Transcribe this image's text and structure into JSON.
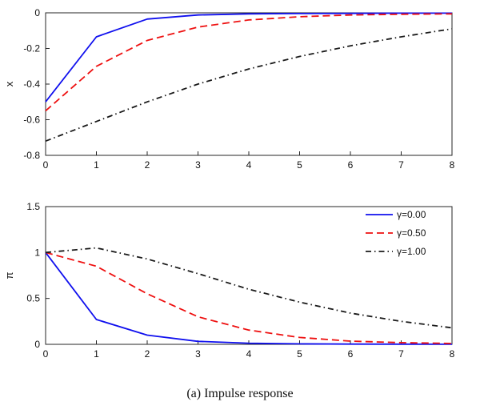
{
  "caption": "(a) Impulse response",
  "colors": {
    "series_blue": "#1010ee",
    "series_red": "#ee1111",
    "series_black": "#1a1a1a",
    "frame": "#262626"
  },
  "chart_data": [
    {
      "type": "line",
      "title": "",
      "xlabel": "",
      "ylabel": "x",
      "xlim": [
        0,
        8
      ],
      "ylim": [
        -0.8,
        0
      ],
      "grid": false,
      "legend": false,
      "x": [
        0,
        1,
        2,
        3,
        4,
        5,
        6,
        7,
        8
      ],
      "xticks": [
        0,
        1,
        2,
        3,
        4,
        5,
        6,
        7,
        8
      ],
      "xtick_labels": [
        "0",
        "1",
        "2",
        "3",
        "4",
        "5",
        "6",
        "7",
        "8"
      ],
      "yticks": [
        0,
        -0.2,
        -0.4,
        -0.6,
        -0.8
      ],
      "ytick_labels": [
        "0",
        "-0.2",
        "-0.4",
        "-0.6",
        "-0.8"
      ],
      "series": [
        {
          "name": "γ=0.00",
          "color": "#1010ee",
          "style": "solid",
          "values": [
            -0.5,
            -0.135,
            -0.035,
            -0.012,
            -0.006,
            -0.004,
            -0.003,
            -0.002,
            -0.002
          ]
        },
        {
          "name": "γ=0.50",
          "color": "#ee1111",
          "style": "dashed",
          "values": [
            -0.55,
            -0.3,
            -0.155,
            -0.08,
            -0.04,
            -0.022,
            -0.012,
            -0.008,
            -0.006
          ]
        },
        {
          "name": "γ=1.00",
          "color": "#1a1a1a",
          "style": "dashdot",
          "values": [
            -0.72,
            -0.61,
            -0.5,
            -0.4,
            -0.315,
            -0.245,
            -0.185,
            -0.135,
            -0.09
          ]
        }
      ]
    },
    {
      "type": "line",
      "title": "",
      "xlabel": "",
      "ylabel": "π",
      "xlim": [
        0,
        8
      ],
      "ylim": [
        0,
        1.5
      ],
      "grid": false,
      "legend": true,
      "legend_position": "top-right",
      "x": [
        0,
        1,
        2,
        3,
        4,
        5,
        6,
        7,
        8
      ],
      "xticks": [
        0,
        1,
        2,
        3,
        4,
        5,
        6,
        7,
        8
      ],
      "xtick_labels": [
        "0",
        "1",
        "2",
        "3",
        "4",
        "5",
        "6",
        "7",
        "8"
      ],
      "yticks": [
        0,
        0.5,
        1,
        1.5
      ],
      "ytick_labels": [
        "0",
        "0.5",
        "1",
        "1.5"
      ],
      "series": [
        {
          "name": "γ=0.00",
          "color": "#1010ee",
          "style": "solid",
          "values": [
            1.0,
            0.27,
            0.1,
            0.032,
            0.012,
            0.005,
            0.003,
            0.002,
            0.001
          ]
        },
        {
          "name": "γ=0.50",
          "color": "#ee1111",
          "style": "dashed",
          "values": [
            1.0,
            0.85,
            0.55,
            0.3,
            0.155,
            0.075,
            0.035,
            0.018,
            0.01
          ]
        },
        {
          "name": "γ=1.00",
          "color": "#1a1a1a",
          "style": "dashdot",
          "values": [
            1.0,
            1.05,
            0.93,
            0.77,
            0.6,
            0.46,
            0.34,
            0.25,
            0.18
          ]
        }
      ]
    }
  ]
}
